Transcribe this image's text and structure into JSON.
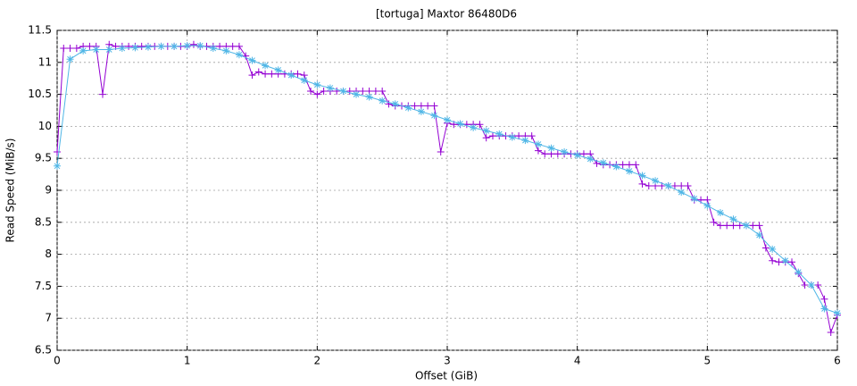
{
  "chart_data": {
    "type": "line",
    "title": "[tortuga] Maxtor 86480D6",
    "x_label": "Offset (GiB)",
    "y_label": "Read Speed (MiB/s)",
    "xlim": [
      0,
      6
    ],
    "ylim": [
      6.5,
      11.5
    ],
    "xticks": [
      0,
      1,
      2,
      3,
      4,
      5,
      6
    ],
    "yticks": [
      6.5,
      7,
      7.5,
      8,
      8.5,
      9,
      9.5,
      10,
      10.5,
      11,
      11.5
    ],
    "grid": true,
    "series": [
      {
        "color": "#9400d3",
        "marker": "plus",
        "x": [
          0,
          0.05,
          0.1,
          0.15,
          0.2,
          0.25,
          0.3,
          0.35,
          0.4,
          0.45,
          0.5,
          0.55,
          0.6,
          0.65,
          0.7,
          0.75,
          0.8,
          0.85,
          0.9,
          0.95,
          1,
          1.05,
          1.1,
          1.15,
          1.2,
          1.25,
          1.3,
          1.35,
          1.4,
          1.45,
          1.5,
          1.55,
          1.6,
          1.65,
          1.7,
          1.75,
          1.8,
          1.85,
          1.9,
          1.95,
          2,
          2.05,
          2.1,
          2.15,
          2.2,
          2.25,
          2.3,
          2.35,
          2.4,
          2.45,
          2.5,
          2.55,
          2.6,
          2.65,
          2.7,
          2.75,
          2.8,
          2.85,
          2.9,
          2.95,
          3,
          3.05,
          3.1,
          3.15,
          3.2,
          3.25,
          3.3,
          3.35,
          3.4,
          3.45,
          3.5,
          3.55,
          3.6,
          3.65,
          3.7,
          3.75,
          3.8,
          3.85,
          3.9,
          3.95,
          4,
          4.05,
          4.1,
          4.15,
          4.2,
          4.25,
          4.3,
          4.35,
          4.4,
          4.45,
          4.5,
          4.55,
          4.6,
          4.65,
          4.7,
          4.75,
          4.8,
          4.85,
          4.9,
          4.95,
          5,
          5.05,
          5.1,
          5.15,
          5.2,
          5.25,
          5.3,
          5.35,
          5.4,
          5.45,
          5.5,
          5.55,
          5.6,
          5.65,
          5.7,
          5.75,
          5.8,
          5.85,
          5.9,
          5.95,
          6
        ],
        "values": [
          9.6,
          11.22,
          11.22,
          11.22,
          11.25,
          11.25,
          11.25,
          10.5,
          11.28,
          11.25,
          11.25,
          11.25,
          11.25,
          11.25,
          11.25,
          11.25,
          11.25,
          11.25,
          11.25,
          11.25,
          11.25,
          11.28,
          11.25,
          11.25,
          11.25,
          11.25,
          11.25,
          11.25,
          11.25,
          11.1,
          10.8,
          10.85,
          10.82,
          10.82,
          10.82,
          10.82,
          10.82,
          10.82,
          10.8,
          10.55,
          10.5,
          10.55,
          10.55,
          10.55,
          10.55,
          10.55,
          10.55,
          10.55,
          10.55,
          10.55,
          10.55,
          10.35,
          10.32,
          10.32,
          10.32,
          10.32,
          10.32,
          10.32,
          10.32,
          9.6,
          10.05,
          10.03,
          10.03,
          10.03,
          10.03,
          10.03,
          9.82,
          9.85,
          9.85,
          9.85,
          9.85,
          9.85,
          9.85,
          9.85,
          9.62,
          9.57,
          9.57,
          9.57,
          9.57,
          9.57,
          9.57,
          9.57,
          9.57,
          9.42,
          9.4,
          9.4,
          9.4,
          9.4,
          9.4,
          9.4,
          9.1,
          9.07,
          9.07,
          9.07,
          9.07,
          9.07,
          9.07,
          9.07,
          8.85,
          8.85,
          8.85,
          8.5,
          8.45,
          8.45,
          8.45,
          8.45,
          8.45,
          8.45,
          8.45,
          8.1,
          7.9,
          7.88,
          7.88,
          7.88,
          7.7,
          7.52,
          7.52,
          7.52,
          7.3,
          6.78,
          7.05
        ]
      },
      {
        "color": "#4fb6e6",
        "marker": "star",
        "x": [
          0,
          0.1,
          0.2,
          0.3,
          0.4,
          0.5,
          0.6,
          0.7,
          0.8,
          0.9,
          1,
          1.1,
          1.2,
          1.3,
          1.4,
          1.5,
          1.6,
          1.7,
          1.8,
          1.9,
          2,
          2.1,
          2.2,
          2.3,
          2.4,
          2.5,
          2.6,
          2.7,
          2.8,
          2.9,
          3,
          3.1,
          3.2,
          3.3,
          3.4,
          3.5,
          3.6,
          3.7,
          3.8,
          3.9,
          4,
          4.1,
          4.2,
          4.3,
          4.4,
          4.5,
          4.6,
          4.7,
          4.8,
          4.9,
          5,
          5.1,
          5.2,
          5.3,
          5.4,
          5.5,
          5.6,
          5.7,
          5.8,
          5.9,
          6
        ],
        "values": [
          9.38,
          11.05,
          11.18,
          11.2,
          11.2,
          11.22,
          11.23,
          11.24,
          11.25,
          11.25,
          11.26,
          11.26,
          11.22,
          11.18,
          11.12,
          11.03,
          10.95,
          10.88,
          10.8,
          10.72,
          10.65,
          10.6,
          10.55,
          10.5,
          10.46,
          10.4,
          10.35,
          10.29,
          10.23,
          10.17,
          10.1,
          10.04,
          9.98,
          9.93,
          9.88,
          9.83,
          9.78,
          9.72,
          9.66,
          9.6,
          9.55,
          9.49,
          9.43,
          9.37,
          9.3,
          9.23,
          9.15,
          9.07,
          8.97,
          8.87,
          8.76,
          8.65,
          8.55,
          8.45,
          8.3,
          8.08,
          7.9,
          7.72,
          7.52,
          7.15,
          7.08
        ]
      }
    ]
  }
}
